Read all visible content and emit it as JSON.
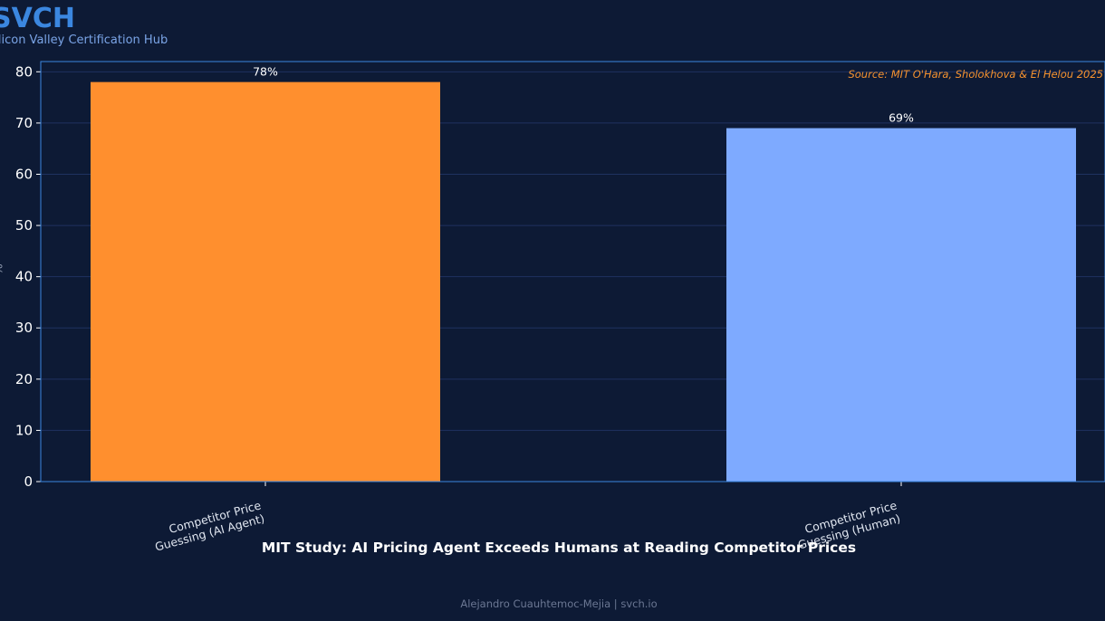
{
  "brand": {
    "logo": "SVCH",
    "name": "Silicon Valley Certification Hub"
  },
  "footer": {
    "credit": "Alejandro Cuauhtemoc-Mejia  |  svch.io"
  },
  "colors": {
    "background": "#0d1a35",
    "accent": "#3b87e0"
  },
  "chart_data": {
    "type": "bar",
    "title": "MIT Study: AI Pricing Agent Exceeds Humans at Reading Competitor Prices",
    "xlabel": "",
    "ylabel": "%",
    "source": "Source: MIT O'Hara, Sholokhova & El Helou 2025",
    "categories": [
      "Competitor Price\nGuessing (AI Agent)",
      "Competitor Price\nGuessing (Human)"
    ],
    "values": [
      78,
      69
    ],
    "data_labels": [
      "78%",
      "69%"
    ],
    "bar_colors": [
      "#ff8f2e",
      "#7eaaff"
    ],
    "ylim": [
      0,
      82
    ],
    "yticks": [
      0,
      10,
      20,
      30,
      40,
      50,
      60,
      70,
      80
    ],
    "grid": true,
    "legend": "none"
  }
}
